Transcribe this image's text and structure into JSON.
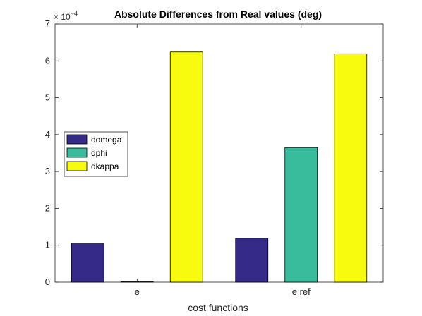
{
  "chart_data": {
    "type": "bar",
    "title": "Absolute Differences from Real values (deg)",
    "xlabel": "cost functions",
    "ylabel": "",
    "categories": [
      "e",
      "e ref"
    ],
    "series": [
      {
        "name": "domega",
        "values": [
          0.000106,
          0.000119
        ],
        "color": "#352a87"
      },
      {
        "name": "dphi",
        "values": [
          1e-06,
          0.000365
        ],
        "color": "#38bc9b"
      },
      {
        "name": "dkappa",
        "values": [
          0.000624,
          0.000619
        ],
        "color": "#f9fb0e"
      }
    ],
    "ylim": [
      0,
      0.0007
    ],
    "yticks": [
      "0",
      "1",
      "2",
      "3",
      "4",
      "5",
      "6",
      "7"
    ],
    "y_exponent_base": "× 10",
    "y_exponent_power": "−4",
    "legend": {
      "location": "west"
    },
    "grid": false
  }
}
